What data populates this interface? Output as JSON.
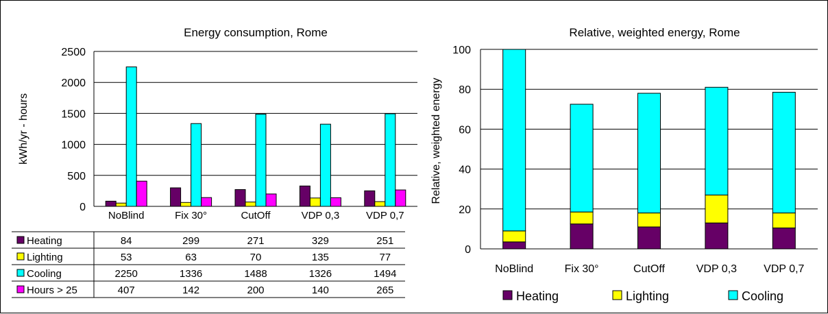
{
  "colors": {
    "heating": "#660066",
    "lighting": "#ffff00",
    "cooling": "#00ffff",
    "hours": "#ff00ff",
    "grid": "#000000"
  },
  "chart_data": [
    {
      "type": "bar",
      "title": "Energy consumption, Rome",
      "xlabel": "",
      "ylabel": "kWh/yr - hours",
      "ylim": [
        0,
        2500
      ],
      "yticks": [
        "0",
        "500",
        "1000",
        "1500",
        "2000",
        "2500"
      ],
      "categories": [
        "NoBlind",
        "Fix 30°",
        "CutOff",
        "VDP 0,3",
        "VDP 0,7"
      ],
      "series": [
        {
          "name": "Heating",
          "values": [
            84,
            299,
            271,
            329,
            251
          ]
        },
        {
          "name": "Lighting",
          "values": [
            53,
            63,
            70,
            135,
            77
          ]
        },
        {
          "name": "Cooling",
          "values": [
            2250,
            1336,
            1488,
            1326,
            1494
          ]
        },
        {
          "name": "Hours > 25",
          "values": [
            407,
            142,
            200,
            140,
            265
          ]
        }
      ],
      "grid": true,
      "legend": "data table below chart"
    },
    {
      "type": "bar",
      "stacked": true,
      "title": "Relative, weighted energy, Rome",
      "xlabel": "",
      "ylabel": "Relative, weighted energy",
      "ylim": [
        0,
        100
      ],
      "yticks": [
        "0",
        "20",
        "40",
        "60",
        "80",
        "100"
      ],
      "categories": [
        "NoBlind",
        "Fix 30°",
        "CutOff",
        "VDP 0,3",
        "VDP 0,7"
      ],
      "series": [
        {
          "name": "Heating",
          "values": [
            3.5,
            12.5,
            11,
            13,
            10.5
          ]
        },
        {
          "name": "Lighting",
          "values": [
            5.5,
            6,
            7,
            14,
            7.5
          ]
        },
        {
          "name": "Cooling",
          "values": [
            91,
            54,
            60,
            54,
            60.5
          ]
        }
      ],
      "grid": true,
      "legend": "bottom"
    }
  ]
}
